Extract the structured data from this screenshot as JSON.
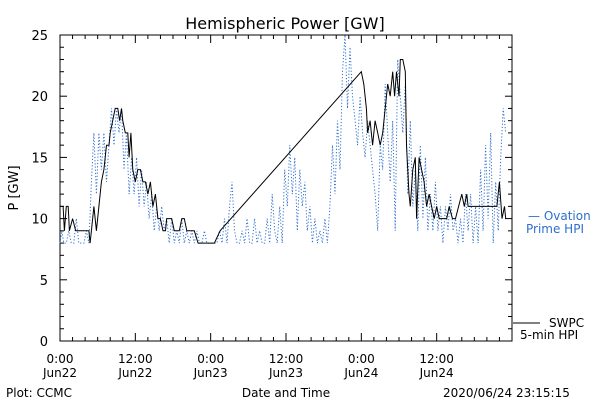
{
  "chart_data": {
    "type": "line",
    "title": "Hemispheric Power [GW]",
    "ylabel": "P [GW]",
    "xlabel": "Date and Time",
    "ylim": [
      0,
      25
    ],
    "y_ticks": [
      0,
      5,
      10,
      15,
      20,
      25
    ],
    "x_range_hours": [
      0,
      72
    ],
    "x_ticks": [
      {
        "h": 0,
        "time": "0:00",
        "date": "Jun22"
      },
      {
        "h": 12,
        "time": "12:00",
        "date": "Jun22"
      },
      {
        "h": 24,
        "time": "0:00",
        "date": "Jun23"
      },
      {
        "h": 36,
        "time": "12:00",
        "date": "Jun23"
      },
      {
        "h": 48,
        "time": "0:00",
        "date": "Jun24"
      },
      {
        "h": 60,
        "time": "12:00",
        "date": "Jun24"
      }
    ],
    "series": [
      {
        "name": "SWPC 5-min HPI",
        "color": "#000000",
        "style": "solid",
        "points": [
          [
            0,
            11
          ],
          [
            0.5,
            11
          ],
          [
            0.7,
            9
          ],
          [
            1,
            11
          ],
          [
            1.3,
            11
          ],
          [
            1.5,
            9
          ],
          [
            2,
            10
          ],
          [
            2.5,
            9
          ],
          [
            3,
            9
          ],
          [
            4,
            9
          ],
          [
            4.6,
            9
          ],
          [
            4.8,
            8
          ],
          [
            5,
            9
          ],
          [
            5.4,
            11
          ],
          [
            5.8,
            9
          ],
          [
            6.2,
            11
          ],
          [
            6.6,
            13
          ],
          [
            7,
            14
          ],
          [
            7.4,
            16
          ],
          [
            7.8,
            16
          ],
          [
            8,
            17
          ],
          [
            8.4,
            18
          ],
          [
            8.8,
            19
          ],
          [
            9.2,
            19
          ],
          [
            9.5,
            18
          ],
          [
            9.8,
            19
          ],
          [
            10,
            18
          ],
          [
            10.4,
            17
          ],
          [
            10.8,
            17
          ],
          [
            11,
            15
          ],
          [
            11.3,
            17
          ],
          [
            11.6,
            14
          ],
          [
            12,
            13
          ],
          [
            12.4,
            14
          ],
          [
            12.8,
            14
          ],
          [
            13.2,
            13
          ],
          [
            13.6,
            13
          ],
          [
            14,
            12
          ],
          [
            14.4,
            13
          ],
          [
            14.8,
            11
          ],
          [
            15.2,
            12
          ],
          [
            15.6,
            10
          ],
          [
            16,
            10
          ],
          [
            16.4,
            9
          ],
          [
            16.8,
            9
          ],
          [
            17,
            10
          ],
          [
            17.4,
            10
          ],
          [
            17.8,
            10
          ],
          [
            18.2,
            9
          ],
          [
            18.6,
            9
          ],
          [
            19,
            9
          ],
          [
            19.4,
            10
          ],
          [
            19.8,
            10
          ],
          [
            20.2,
            9
          ],
          [
            20.6,
            9
          ],
          [
            21,
            9
          ],
          [
            21.4,
            9
          ],
          [
            22,
            8
          ],
          [
            23,
            8
          ],
          [
            24,
            8
          ],
          [
            24.6,
            8
          ],
          [
            25.5,
            9
          ],
          [
            48,
            22
          ],
          [
            48.4,
            21
          ],
          [
            48.8,
            19
          ],
          [
            49,
            17
          ],
          [
            49.4,
            18
          ],
          [
            49.8,
            16
          ],
          [
            50.2,
            18
          ],
          [
            50.6,
            17
          ],
          [
            51,
            16
          ],
          [
            51.4,
            17
          ],
          [
            51.8,
            19
          ],
          [
            52.2,
            21
          ],
          [
            52.6,
            20
          ],
          [
            53,
            22
          ],
          [
            53.3,
            20
          ],
          [
            53.6,
            22
          ],
          [
            54,
            20
          ],
          [
            54.2,
            23
          ],
          [
            54.6,
            23
          ],
          [
            55,
            22
          ],
          [
            55.2,
            16
          ],
          [
            55.6,
            12
          ],
          [
            55.8,
            11
          ],
          [
            56.2,
            14
          ],
          [
            56.6,
            15
          ],
          [
            56.8,
            10
          ],
          [
            57.2,
            15
          ],
          [
            57.6,
            14
          ],
          [
            58,
            13
          ],
          [
            58.4,
            11
          ],
          [
            58.8,
            12
          ],
          [
            59.2,
            11
          ],
          [
            59.6,
            10
          ],
          [
            60,
            11
          ],
          [
            60.4,
            10
          ],
          [
            60.8,
            10
          ],
          [
            61,
            10
          ],
          [
            61.6,
            10
          ],
          [
            62,
            11
          ],
          [
            62.5,
            10
          ],
          [
            63,
            10
          ],
          [
            63.5,
            11
          ],
          [
            64,
            12
          ],
          [
            64.4,
            11
          ],
          [
            64.8,
            12
          ],
          [
            65,
            11
          ],
          [
            65.6,
            11
          ],
          [
            66,
            11
          ],
          [
            66.6,
            11
          ],
          [
            67,
            11
          ],
          [
            67.6,
            11
          ],
          [
            68,
            11
          ],
          [
            68.6,
            11
          ],
          [
            69,
            11
          ],
          [
            69.6,
            11
          ],
          [
            70,
            13
          ],
          [
            70.4,
            10
          ],
          [
            70.8,
            11
          ],
          [
            71,
            10
          ]
        ]
      },
      {
        "name": "Ovation Prime HPI",
        "color": "#2f6fd0",
        "style": "dotted",
        "points": [
          [
            0,
            8
          ],
          [
            0.3,
            9
          ],
          [
            0.6,
            8
          ],
          [
            1,
            8
          ],
          [
            1.4,
            9
          ],
          [
            1.8,
            8
          ],
          [
            2.2,
            8
          ],
          [
            2.6,
            10
          ],
          [
            3,
            8
          ],
          [
            3.4,
            8
          ],
          [
            3.8,
            8
          ],
          [
            4.2,
            9
          ],
          [
            4.6,
            8
          ],
          [
            5,
            13
          ],
          [
            5.4,
            17
          ],
          [
            5.8,
            12
          ],
          [
            6.2,
            17
          ],
          [
            6.6,
            14
          ],
          [
            7,
            17
          ],
          [
            7.4,
            13
          ],
          [
            7.8,
            16
          ],
          [
            8.2,
            19
          ],
          [
            8.6,
            16
          ],
          [
            9,
            19
          ],
          [
            9.4,
            17
          ],
          [
            9.8,
            19
          ],
          [
            10.2,
            14
          ],
          [
            10.6,
            17
          ],
          [
            11,
            12
          ],
          [
            11.4,
            15
          ],
          [
            11.8,
            12
          ],
          [
            12.2,
            15
          ],
          [
            12.6,
            11
          ],
          [
            13,
            14
          ],
          [
            13.4,
            11
          ],
          [
            13.8,
            13
          ],
          [
            14.2,
            10
          ],
          [
            14.6,
            12
          ],
          [
            15,
            9
          ],
          [
            15.4,
            11
          ],
          [
            15.8,
            9
          ],
          [
            16.2,
            11
          ],
          [
            16.6,
            9
          ],
          [
            17,
            10
          ],
          [
            17.4,
            8
          ],
          [
            17.8,
            10
          ],
          [
            18.2,
            8
          ],
          [
            18.6,
            9
          ],
          [
            19,
            8
          ],
          [
            19.4,
            10
          ],
          [
            19.8,
            8
          ],
          [
            20.2,
            9
          ],
          [
            20.6,
            8
          ],
          [
            21,
            9
          ],
          [
            21.4,
            8
          ],
          [
            21.8,
            9
          ],
          [
            22.2,
            8
          ],
          [
            22.6,
            8
          ],
          [
            23,
            9
          ],
          [
            23.4,
            8
          ],
          [
            23.8,
            8
          ],
          [
            24.2,
            8
          ],
          [
            24.6,
            8
          ],
          [
            25,
            8
          ],
          [
            25.4,
            9
          ],
          [
            25.8,
            8
          ],
          [
            26.2,
            10
          ],
          [
            26.6,
            8
          ],
          [
            27,
            11
          ],
          [
            27.4,
            13
          ],
          [
            27.8,
            9
          ],
          [
            28.2,
            8
          ],
          [
            28.6,
            8
          ],
          [
            29,
            9
          ],
          [
            29.4,
            8
          ],
          [
            29.8,
            10
          ],
          [
            30.2,
            8
          ],
          [
            30.6,
            8
          ],
          [
            31,
            10
          ],
          [
            31.4,
            8
          ],
          [
            31.8,
            9
          ],
          [
            32.2,
            8
          ],
          [
            32.6,
            8
          ],
          [
            33,
            10
          ],
          [
            33.4,
            8
          ],
          [
            33.8,
            12
          ],
          [
            34.2,
            9
          ],
          [
            34.6,
            8
          ],
          [
            35,
            11
          ],
          [
            35.4,
            8
          ],
          [
            35.8,
            14
          ],
          [
            36.2,
            11
          ],
          [
            36.6,
            16
          ],
          [
            37,
            12
          ],
          [
            37.4,
            15
          ],
          [
            37.8,
            9
          ],
          [
            38.2,
            14
          ],
          [
            38.6,
            11
          ],
          [
            39,
            13
          ],
          [
            39.4,
            9
          ],
          [
            39.8,
            11
          ],
          [
            40.2,
            8
          ],
          [
            40.6,
            10
          ],
          [
            41,
            8
          ],
          [
            41.4,
            9
          ],
          [
            41.8,
            8
          ],
          [
            42.2,
            10
          ],
          [
            42.6,
            8
          ],
          [
            43,
            11
          ],
          [
            43.4,
            16
          ],
          [
            43.8,
            12
          ],
          [
            44.2,
            18
          ],
          [
            44.6,
            14
          ],
          [
            45,
            22
          ],
          [
            45.4,
            25
          ],
          [
            45.8,
            19
          ],
          [
            46.2,
            24
          ],
          [
            46.6,
            20
          ],
          [
            47,
            18
          ],
          [
            47.4,
            16
          ],
          [
            47.8,
            20
          ],
          [
            48.2,
            17
          ],
          [
            48.6,
            15
          ],
          [
            49,
            18
          ],
          [
            49.4,
            16
          ],
          [
            49.8,
            14
          ],
          [
            50.2,
            12
          ],
          [
            50.6,
            9
          ],
          [
            51,
            16
          ],
          [
            51.4,
            14
          ],
          [
            51.8,
            21
          ],
          [
            52.2,
            17
          ],
          [
            52.6,
            13
          ],
          [
            53,
            18
          ],
          [
            53.4,
            9
          ],
          [
            53.8,
            23
          ],
          [
            54.2,
            20
          ],
          [
            54.6,
            17
          ],
          [
            55,
            21
          ],
          [
            55.4,
            12
          ],
          [
            55.8,
            18
          ],
          [
            56.2,
            11
          ],
          [
            56.6,
            14
          ],
          [
            57,
            9
          ],
          [
            57.4,
            16
          ],
          [
            57.8,
            10
          ],
          [
            58.2,
            15
          ],
          [
            58.6,
            9
          ],
          [
            59,
            12
          ],
          [
            59.4,
            9
          ],
          [
            59.8,
            13
          ],
          [
            60.2,
            9
          ],
          [
            60.6,
            11
          ],
          [
            61,
            8
          ],
          [
            61.4,
            11
          ],
          [
            61.8,
            9
          ],
          [
            62.2,
            12
          ],
          [
            62.6,
            9
          ],
          [
            63,
            10
          ],
          [
            63.4,
            8
          ],
          [
            63.8,
            10
          ],
          [
            64.2,
            8
          ],
          [
            64.6,
            12
          ],
          [
            65,
            9
          ],
          [
            65.4,
            12
          ],
          [
            65.8,
            8
          ],
          [
            66.2,
            11
          ],
          [
            66.6,
            8
          ],
          [
            67,
            14
          ],
          [
            67.4,
            9
          ],
          [
            67.8,
            16
          ],
          [
            68.2,
            10
          ],
          [
            68.6,
            17
          ],
          [
            69,
            8
          ],
          [
            69.4,
            13
          ],
          [
            69.8,
            9
          ],
          [
            70.2,
            15
          ],
          [
            70.6,
            19
          ],
          [
            71,
            17
          ]
        ]
      }
    ],
    "legend": [
      {
        "label_line1": "— Ovation",
        "label_line2": "Prime HPI",
        "color": "#2f6fd0"
      },
      {
        "label_line1": "SWPC",
        "label_line2": "5-min HPI",
        "color": "#000000"
      }
    ],
    "footer": {
      "left": "Plot: CCMC",
      "center": "Date and Time",
      "right": "2020/06/24 23:15:15"
    }
  }
}
